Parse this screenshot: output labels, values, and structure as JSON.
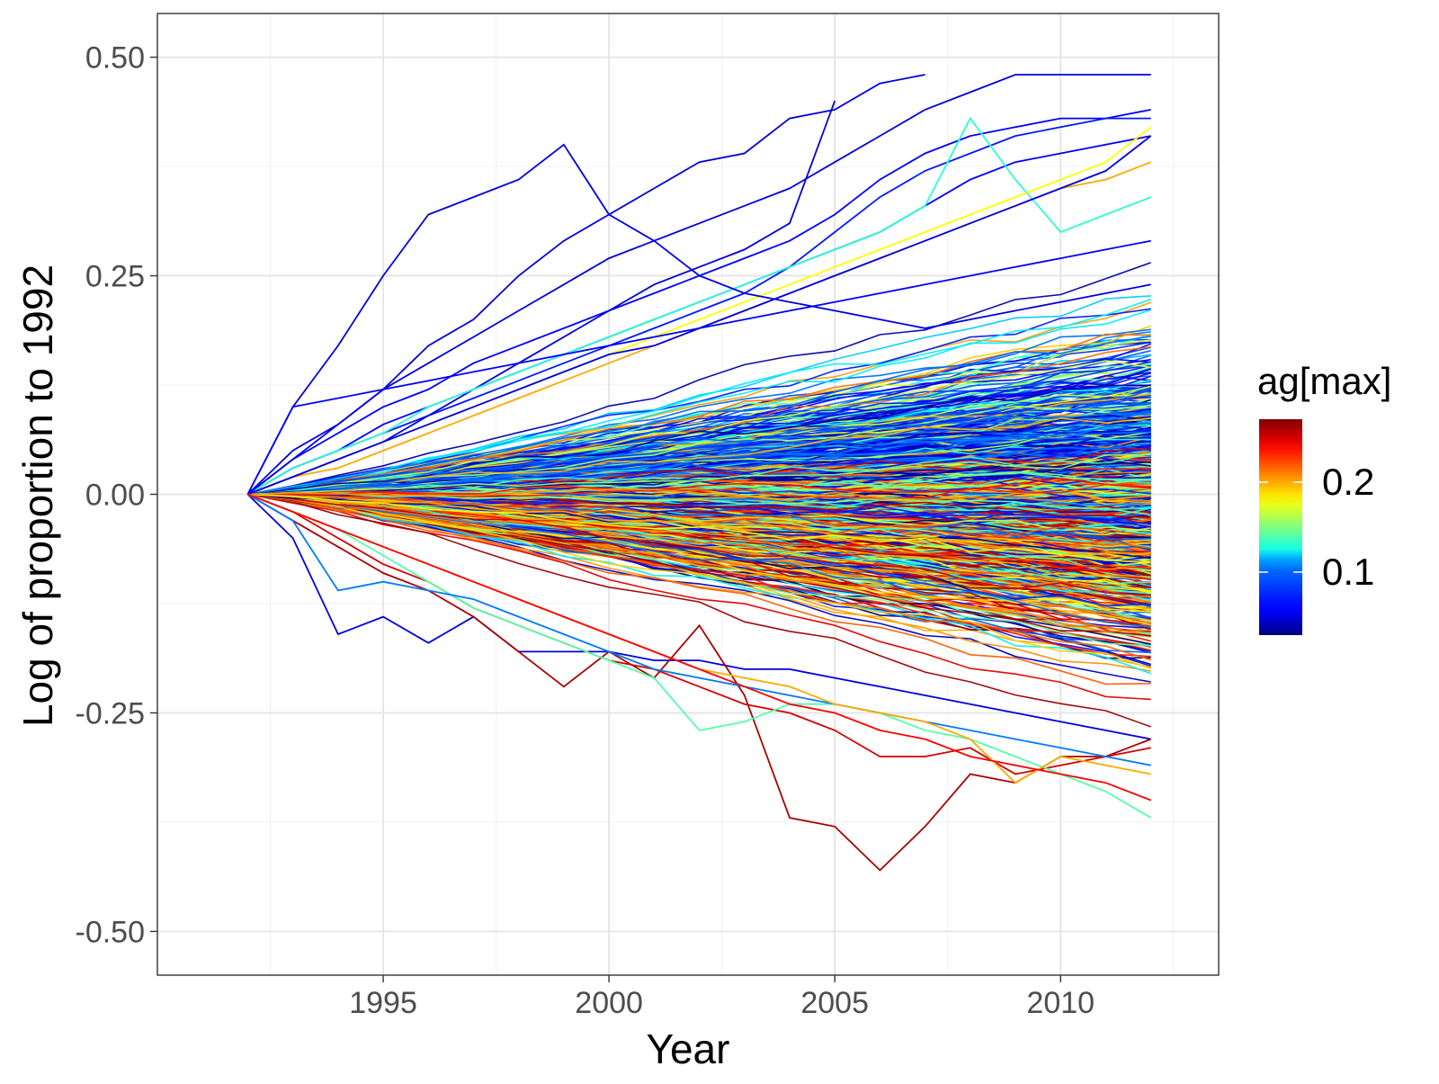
{
  "chart_data": {
    "type": "line",
    "title": "",
    "xlabel": "Year",
    "ylabel": "Log of proportion to 1992",
    "x_ticks": [
      1995,
      2000,
      2005,
      2010
    ],
    "x_tick_labels": [
      "1995",
      "2000",
      "2005",
      "2010"
    ],
    "y_ticks": [
      -0.5,
      -0.25,
      0,
      0.25,
      0.5
    ],
    "y_tick_labels": [
      "-0.50",
      "-0.25",
      "0.00",
      "0.25",
      "0.50"
    ],
    "xlim": [
      1990,
      2013.5
    ],
    "ylim": [
      -0.55,
      0.55
    ],
    "grid": true,
    "legend": {
      "title": "ag[max]",
      "type": "colorbar",
      "position": "right",
      "ticks": [
        0.2,
        0.1
      ],
      "tick_labels": [
        "0.2",
        "0.1"
      ],
      "range": [
        0.03,
        0.27
      ],
      "colormap": "jet",
      "colors": [
        "#00007F",
        "#0000FF",
        "#007FFF",
        "#00FFFF",
        "#7FFF7F",
        "#FFFF00",
        "#FF7F00",
        "#FF0000",
        "#7F0000"
      ]
    },
    "background_bundle": {
      "description": "many series from 0 at 1992 fanning out to between about -0.3 and +0.3 by 2012",
      "count": 900,
      "x_start": 1992,
      "x_end": 2012,
      "end_min": -0.3,
      "end_max": 0.32
    },
    "series": [
      {
        "color_value": 0.05,
        "x": [
          1992,
          1993,
          1994,
          1995,
          1996,
          1997,
          1998,
          1999,
          2000,
          2001,
          2002,
          2003,
          2004,
          2005,
          2006,
          2007
        ],
        "y": [
          0,
          0.1,
          0.17,
          0.25,
          0.32,
          0.34,
          0.36,
          0.4,
          0.32,
          0.35,
          0.38,
          0.39,
          0.43,
          0.44,
          0.47,
          0.48
        ]
      },
      {
        "color_value": 0.05,
        "x": [
          1992,
          1993,
          1994,
          1995,
          1996,
          1997,
          1998,
          1999,
          2000,
          2001,
          2002,
          2003,
          2004,
          2005,
          2006,
          2007,
          2008,
          2009,
          2010,
          2011,
          2012
        ],
        "y": [
          0,
          0.05,
          0.08,
          0.12,
          0.15,
          0.18,
          0.21,
          0.24,
          0.27,
          0.29,
          0.31,
          0.33,
          0.35,
          0.38,
          0.41,
          0.44,
          0.46,
          0.48,
          0.48,
          0.48,
          0.48
        ]
      },
      {
        "color_value": 0.06,
        "x": [
          1992,
          1993,
          1994,
          1995,
          1996,
          1997,
          1998,
          1999,
          2000,
          2001,
          2002,
          2003,
          2004,
          2005,
          2006,
          2007,
          2008,
          2009,
          2010,
          2011,
          2012
        ],
        "y": [
          0,
          0.04,
          0.07,
          0.1,
          0.12,
          0.15,
          0.17,
          0.19,
          0.21,
          0.23,
          0.25,
          0.27,
          0.29,
          0.32,
          0.36,
          0.39,
          0.41,
          0.42,
          0.43,
          0.43,
          0.44
        ]
      },
      {
        "color_value": 0.07,
        "x": [
          1992,
          1993,
          1994,
          1995,
          1996,
          1997,
          1998,
          1999,
          2000,
          2001,
          2002,
          2003,
          2004,
          2005,
          2006,
          2007,
          2008,
          2009,
          2010,
          2011,
          2012
        ],
        "y": [
          0,
          0.03,
          0.05,
          0.07,
          0.09,
          0.11,
          0.13,
          0.15,
          0.17,
          0.19,
          0.21,
          0.23,
          0.26,
          0.3,
          0.34,
          0.37,
          0.39,
          0.41,
          0.42,
          0.43,
          0.43
        ]
      },
      {
        "color_value": 0.05,
        "x": [
          1992,
          1993,
          1994,
          1995,
          1996,
          1997,
          1998,
          1999,
          2000,
          2001,
          2002,
          2003,
          2004,
          2005
        ],
        "y": [
          0,
          0.02,
          0.04,
          0.06,
          0.09,
          0.12,
          0.15,
          0.18,
          0.21,
          0.24,
          0.26,
          0.28,
          0.31,
          0.45
        ]
      },
      {
        "color_value": 0.06,
        "x": [
          1992,
          1993,
          1994,
          1995,
          1996,
          1997,
          1998,
          1999,
          2000,
          2001,
          2002,
          2003,
          2004,
          2005,
          2006,
          2007,
          2008,
          2009,
          2010,
          2011,
          2012
        ],
        "y": [
          0,
          0.03,
          0.05,
          0.08,
          0.1,
          0.12,
          0.14,
          0.16,
          0.18,
          0.2,
          0.22,
          0.24,
          0.26,
          0.28,
          0.3,
          0.33,
          0.36,
          0.38,
          0.39,
          0.4,
          0.41
        ]
      },
      {
        "color_value": 0.13,
        "x": [
          1992,
          1993,
          1994,
          1995,
          1996,
          1997,
          1998,
          1999,
          2000,
          2001,
          2002,
          2003,
          2004,
          2005,
          2006,
          2007,
          2008,
          2009,
          2010,
          2011,
          2012
        ],
        "y": [
          0,
          0.03,
          0.05,
          0.07,
          0.1,
          0.12,
          0.14,
          0.16,
          0.18,
          0.2,
          0.22,
          0.24,
          0.26,
          0.28,
          0.3,
          0.33,
          0.43,
          0.36,
          0.3,
          0.32,
          0.34
        ]
      },
      {
        "color_value": 0.18,
        "x": [
          1992,
          1993,
          1994,
          1995,
          1996,
          1997,
          1998,
          1999,
          2000,
          2001,
          2002,
          2003,
          2004,
          2005,
          2006,
          2007,
          2008,
          2009,
          2010,
          2011,
          2012
        ],
        "y": [
          0,
          0.02,
          0.04,
          0.06,
          0.08,
          0.1,
          0.12,
          0.14,
          0.16,
          0.18,
          0.2,
          0.22,
          0.24,
          0.26,
          0.28,
          0.3,
          0.32,
          0.34,
          0.36,
          0.38,
          0.42
        ]
      },
      {
        "color_value": 0.2,
        "x": [
          1992,
          1993,
          1994,
          1995,
          1996,
          1997,
          1998,
          1999,
          2000,
          2001,
          2002,
          2003,
          2004,
          2005,
          2006,
          2007,
          2008,
          2009,
          2010,
          2011,
          2012
        ],
        "y": [
          0,
          0.02,
          0.03,
          0.05,
          0.07,
          0.09,
          0.11,
          0.13,
          0.15,
          0.17,
          0.19,
          0.21,
          0.23,
          0.25,
          0.27,
          0.29,
          0.31,
          0.33,
          0.35,
          0.36,
          0.38
        ]
      },
      {
        "color_value": 0.05,
        "x": [
          1992,
          1993,
          1994,
          1995,
          1996,
          1997,
          1998,
          1999,
          2000,
          2001,
          2002,
          2003,
          2004,
          2005,
          2006,
          2007,
          2008,
          2009,
          2010,
          2011,
          2012
        ],
        "y": [
          0,
          0.02,
          0.04,
          0.06,
          0.08,
          0.1,
          0.12,
          0.14,
          0.16,
          0.17,
          0.19,
          0.21,
          0.23,
          0.25,
          0.27,
          0.29,
          0.31,
          0.33,
          0.35,
          0.37,
          0.41
        ]
      },
      {
        "color_value": 0.06,
        "x": [
          1992,
          1993,
          1994,
          1995,
          1996,
          1997,
          1998,
          1999,
          2000,
          2001,
          2002,
          2003,
          2004,
          2005,
          2006,
          2007,
          2008,
          2009,
          2010,
          2011,
          2012
        ],
        "y": [
          0,
          0.1,
          0.11,
          0.12,
          0.13,
          0.14,
          0.15,
          0.16,
          0.17,
          0.18,
          0.19,
          0.2,
          0.21,
          0.22,
          0.23,
          0.24,
          0.25,
          0.26,
          0.27,
          0.28,
          0.29
        ]
      },
      {
        "color_value": 0.05,
        "x": [
          1992,
          1993,
          1994,
          1995,
          1996,
          1997,
          1998,
          1999,
          2000,
          2001,
          2002,
          2003,
          2004,
          2005,
          2006,
          2007,
          2008,
          2009,
          2010,
          2011,
          2012
        ],
        "y": [
          0,
          0.04,
          0.08,
          0.12,
          0.17,
          0.2,
          0.25,
          0.29,
          0.32,
          0.29,
          0.25,
          0.23,
          0.22,
          0.21,
          0.2,
          0.19,
          0.2,
          0.21,
          0.22,
          0.23,
          0.24
        ]
      },
      {
        "color_value": 0.05,
        "x": [
          1992,
          1993,
          1994,
          1995,
          1996,
          1997,
          1998,
          1999,
          2000,
          2001,
          2002,
          2003,
          2004,
          2005,
          2006,
          2007,
          2008,
          2009,
          2010,
          2011,
          2012
        ],
        "y": [
          0,
          -0.05,
          -0.16,
          -0.14,
          -0.17,
          -0.14,
          -0.18,
          -0.18,
          -0.18,
          -0.19,
          -0.19,
          -0.2,
          -0.2,
          -0.21,
          -0.22,
          -0.23,
          -0.24,
          -0.25,
          -0.26,
          -0.27,
          -0.28
        ]
      },
      {
        "color_value": 0.26,
        "x": [
          1992,
          1993,
          1994,
          1995,
          1996,
          1997,
          1998,
          1999,
          2000,
          2001,
          2002,
          2003,
          2004,
          2005,
          2006,
          2007,
          2008,
          2009,
          2010,
          2011,
          2012
        ],
        "y": [
          0,
          -0.03,
          -0.06,
          -0.09,
          -0.11,
          -0.14,
          -0.18,
          -0.22,
          -0.18,
          -0.21,
          -0.15,
          -0.23,
          -0.37,
          -0.38,
          -0.43,
          -0.38,
          -0.32,
          -0.33,
          -0.3,
          -0.3,
          -0.28
        ]
      },
      {
        "color_value": 0.25,
        "x": [
          1992,
          1993,
          1994,
          1995,
          1996,
          1997,
          1998,
          1999,
          2000,
          2001,
          2002,
          2003,
          2004,
          2005,
          2006,
          2007,
          2008,
          2009,
          2010,
          2011,
          2012
        ],
        "y": [
          0,
          -0.02,
          -0.05,
          -0.08,
          -0.1,
          -0.13,
          -0.15,
          -0.17,
          -0.19,
          -0.2,
          -0.22,
          -0.24,
          -0.25,
          -0.27,
          -0.3,
          -0.3,
          -0.29,
          -0.32,
          -0.31,
          -0.3,
          -0.29
        ]
      },
      {
        "color_value": 0.14,
        "x": [
          1992,
          1993,
          1994,
          1995,
          1996,
          1997,
          1998,
          1999,
          2000,
          2001,
          2002,
          2003,
          2004,
          2005,
          2006,
          2007,
          2008,
          2009,
          2010,
          2011,
          2012
        ],
        "y": [
          0,
          -0.02,
          -0.04,
          -0.07,
          -0.1,
          -0.13,
          -0.15,
          -0.17,
          -0.19,
          -0.21,
          -0.27,
          -0.26,
          -0.24,
          -0.24,
          -0.25,
          -0.27,
          -0.28,
          -0.3,
          -0.32,
          -0.34,
          -0.37
        ]
      },
      {
        "color_value": 0.11,
        "x": [
          1992,
          1993,
          1994,
          1995,
          1996,
          1997,
          1998,
          1999,
          2000,
          2001,
          2002,
          2003,
          2004,
          2005,
          2006,
          2007,
          2008,
          2009,
          2010,
          2011,
          2012
        ],
        "y": [
          0,
          -0.03,
          -0.11,
          -0.1,
          -0.11,
          -0.12,
          -0.14,
          -0.16,
          -0.18,
          -0.2,
          -0.21,
          -0.22,
          -0.23,
          -0.24,
          -0.25,
          -0.26,
          -0.27,
          -0.28,
          -0.29,
          -0.3,
          -0.31
        ]
      },
      {
        "color_value": 0.2,
        "x": [
          1992,
          1993,
          1994,
          1995,
          1996,
          1997,
          1998,
          1999,
          2000,
          2001,
          2002,
          2003,
          2004,
          2005,
          2006,
          2007,
          2008,
          2009,
          2010,
          2011,
          2012
        ],
        "y": [
          0,
          -0.02,
          -0.04,
          -0.06,
          -0.08,
          -0.1,
          -0.12,
          -0.14,
          -0.16,
          -0.18,
          -0.2,
          -0.21,
          -0.22,
          -0.24,
          -0.25,
          -0.26,
          -0.28,
          -0.33,
          -0.3,
          -0.31,
          -0.32
        ]
      },
      {
        "color_value": 0.24,
        "x": [
          1992,
          1993,
          1994,
          1995,
          1996,
          1997,
          1998,
          1999,
          2000,
          2001,
          2002,
          2003,
          2004,
          2005,
          2006,
          2007,
          2008,
          2009,
          2010,
          2011,
          2012
        ],
        "y": [
          0,
          -0.02,
          -0.04,
          -0.06,
          -0.08,
          -0.1,
          -0.12,
          -0.14,
          -0.16,
          -0.18,
          -0.2,
          -0.22,
          -0.24,
          -0.25,
          -0.27,
          -0.28,
          -0.3,
          -0.31,
          -0.32,
          -0.33,
          -0.35
        ]
      }
    ]
  }
}
